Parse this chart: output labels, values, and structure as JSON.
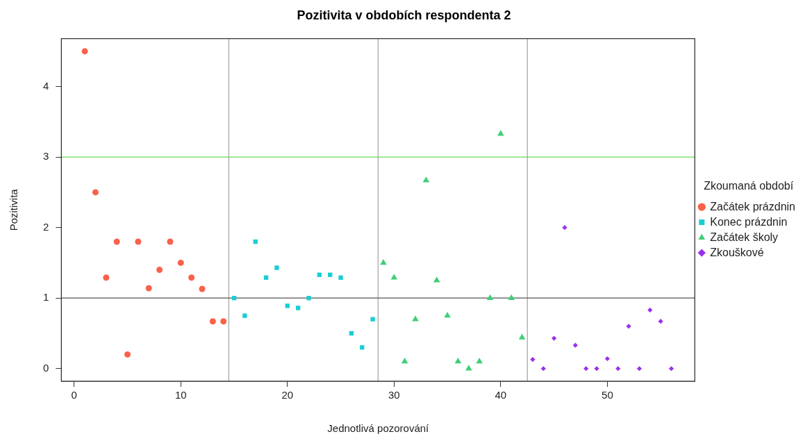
{
  "chart_data": {
    "type": "scatter",
    "title": "Pozitivita v obdobích respondenta 2",
    "xlabel": "Jednotlivá pozorování",
    "ylabel": "Pozitivita",
    "legend_title": "Zkoumaná období",
    "series": [
      {
        "name": "Začátek prázdnin",
        "color": "#fa6149",
        "marker": "circle",
        "x": [
          1,
          2,
          3,
          4,
          5,
          6,
          7,
          8,
          9,
          10,
          11,
          12,
          13,
          14
        ],
        "values": [
          4.5,
          2.5,
          1.29,
          1.8,
          0.2,
          1.8,
          1.14,
          1.4,
          1.8,
          1.5,
          1.29,
          1.13,
          0.67,
          0.67
        ]
      },
      {
        "name": "Konec prázdnin",
        "color": "#19ced4",
        "marker": "square",
        "x": [
          15,
          16,
          17,
          18,
          19,
          20,
          21,
          22,
          23,
          24,
          25,
          26,
          27,
          28
        ],
        "values": [
          1.0,
          0.75,
          1.8,
          1.29,
          1.43,
          0.89,
          0.86,
          1.0,
          1.33,
          1.33,
          1.29,
          0.5,
          0.3,
          0.7
        ]
      },
      {
        "name": "Začátek školy",
        "color": "#3ecf77",
        "marker": "triangle",
        "x": [
          29,
          30,
          31,
          32,
          33,
          34,
          35,
          36,
          37,
          38,
          39,
          40,
          41,
          42
        ],
        "values": [
          1.5,
          1.29,
          0.1,
          0.7,
          2.67,
          1.25,
          0.75,
          0.1,
          0,
          0.1,
          1.0,
          3.33,
          1.0,
          0.44
        ]
      },
      {
        "name": "Zkouškové",
        "color": "#9b30f0",
        "marker": "diamond",
        "x": [
          43,
          44,
          45,
          46,
          47,
          48,
          49,
          50,
          51,
          52,
          53,
          54,
          55,
          56
        ],
        "values": [
          0.13,
          0,
          0.43,
          2.0,
          0.33,
          0,
          0,
          0.14,
          0,
          0.6,
          0,
          0.83,
          0.67,
          0
        ]
      }
    ],
    "xlim": [
      -1.2,
      58.2
    ],
    "ylim": [
      -0.18,
      4.68
    ],
    "xticks": [
      0,
      10,
      20,
      30,
      40,
      50
    ],
    "yticks": [
      0,
      1,
      2,
      3,
      4
    ],
    "ref_lines": [
      {
        "axis": "x",
        "value": 14.5,
        "color": "#a8a8a8"
      },
      {
        "axis": "x",
        "value": 28.5,
        "color": "#a8a8a8"
      },
      {
        "axis": "x",
        "value": 42.5,
        "color": "#a8a8a8"
      },
      {
        "axis": "y",
        "value": 1,
        "color": "#555555"
      },
      {
        "axis": "y",
        "value": 3,
        "color": "#66d95a"
      }
    ],
    "grid": false,
    "legend": "right"
  }
}
